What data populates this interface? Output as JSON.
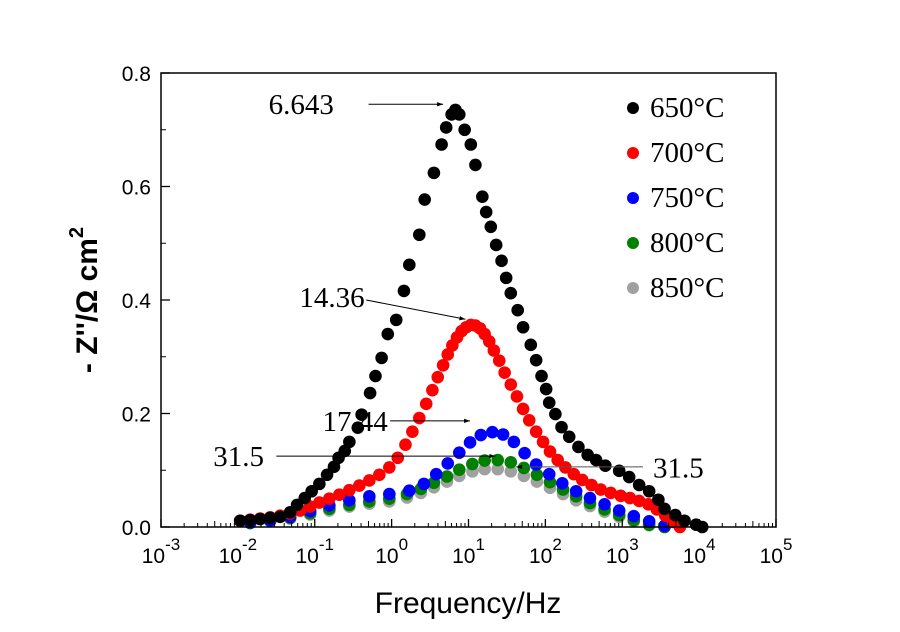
{
  "chart_data": {
    "type": "scatter",
    "title": "",
    "xlabel": "Frequency/Hz",
    "ylabel": "- Z''/Ω cm²",
    "ylabel_parts": {
      "main": "- Z''/Ω cm",
      "sup": "2"
    },
    "xscale": "log",
    "xlim": [
      0.001,
      100000
    ],
    "ylim": [
      0.0,
      0.8
    ],
    "grid": false,
    "legend_position": "top-right",
    "x_ticks": [
      {
        "base": "10",
        "exp": "-3"
      },
      {
        "base": "10",
        "exp": "-2"
      },
      {
        "base": "10",
        "exp": "-1"
      },
      {
        "base": "10",
        "exp": "0"
      },
      {
        "base": "10",
        "exp": "1"
      },
      {
        "base": "10",
        "exp": "2"
      },
      {
        "base": "10",
        "exp": "3"
      },
      {
        "base": "10",
        "exp": "4"
      },
      {
        "base": "10",
        "exp": "5"
      }
    ],
    "y_ticks": [
      "0.0",
      "0.2",
      "0.4",
      "0.6",
      "0.8"
    ],
    "y_tick_values": [
      0.0,
      0.2,
      0.4,
      0.6,
      0.8
    ],
    "series": [
      {
        "name": "650°C",
        "color": "#000000",
        "log_x": [
          -1.97,
          -1.84,
          -1.71,
          -1.58,
          -1.45,
          -1.32,
          -1.23,
          -1.13,
          -1.04,
          -0.94,
          -0.84,
          -0.75,
          -0.69,
          -0.61,
          -0.55,
          -0.44,
          -0.39,
          -0.28,
          -0.21,
          -0.13,
          -0.05,
          0.06,
          0.16,
          0.23,
          0.36,
          0.43,
          0.55,
          0.65,
          0.71,
          0.78,
          0.83,
          0.88,
          0.95,
          1.03,
          1.09,
          1.18,
          1.23,
          1.29,
          1.36,
          1.43,
          1.49,
          1.55,
          1.64,
          1.71,
          1.81,
          1.88,
          1.95,
          2.01,
          2.05,
          2.13,
          2.21,
          2.31,
          2.43,
          2.55,
          2.66,
          2.78,
          2.96,
          3.09,
          3.22,
          3.35,
          3.47,
          3.55,
          3.69,
          3.81,
          3.96,
          4.04
        ],
        "values": [
          0.011,
          0.012,
          0.014,
          0.016,
          0.018,
          0.026,
          0.039,
          0.051,
          0.063,
          0.076,
          0.092,
          0.106,
          0.122,
          0.134,
          0.15,
          0.175,
          0.198,
          0.236,
          0.266,
          0.298,
          0.34,
          0.365,
          0.416,
          0.462,
          0.515,
          0.577,
          0.624,
          0.674,
          0.704,
          0.727,
          0.735,
          0.727,
          0.7,
          0.674,
          0.638,
          0.582,
          0.555,
          0.529,
          0.497,
          0.469,
          0.439,
          0.412,
          0.382,
          0.352,
          0.321,
          0.294,
          0.266,
          0.243,
          0.219,
          0.199,
          0.176,
          0.159,
          0.141,
          0.127,
          0.118,
          0.108,
          0.099,
          0.088,
          0.074,
          0.063,
          0.048,
          0.032,
          0.021,
          0.011,
          0.004,
          0.0
        ]
      },
      {
        "name": "700°C",
        "color": "#ff0000",
        "log_x": [
          -1.97,
          -1.84,
          -1.71,
          -1.58,
          -1.45,
          -1.32,
          -1.19,
          -1.06,
          -0.94,
          -0.81,
          -0.68,
          -0.55,
          -0.42,
          -0.29,
          -0.16,
          -0.03,
          0.08,
          0.18,
          0.27,
          0.36,
          0.45,
          0.53,
          0.6,
          0.67,
          0.73,
          0.79,
          0.85,
          0.91,
          0.97,
          1.03,
          1.09,
          1.15,
          1.21,
          1.27,
          1.33,
          1.4,
          1.47,
          1.55,
          1.63,
          1.71,
          1.79,
          1.88,
          1.97,
          2.06,
          2.16,
          2.26,
          2.37,
          2.48,
          2.6,
          2.72,
          2.85,
          2.98,
          3.1,
          3.22,
          3.34,
          3.45,
          3.56,
          3.66,
          3.75
        ],
        "values": [
          0.011,
          0.013,
          0.015,
          0.017,
          0.02,
          0.024,
          0.029,
          0.036,
          0.043,
          0.05,
          0.057,
          0.065,
          0.073,
          0.082,
          0.092,
          0.105,
          0.122,
          0.145,
          0.168,
          0.192,
          0.217,
          0.241,
          0.264,
          0.285,
          0.304,
          0.32,
          0.334,
          0.345,
          0.352,
          0.356,
          0.355,
          0.35,
          0.34,
          0.327,
          0.311,
          0.293,
          0.272,
          0.251,
          0.23,
          0.208,
          0.188,
          0.168,
          0.15,
          0.133,
          0.118,
          0.105,
          0.093,
          0.083,
          0.074,
          0.066,
          0.06,
          0.055,
          0.051,
          0.046,
          0.04,
          0.031,
          0.02,
          0.009,
          0.0
        ]
      },
      {
        "name": "750°C",
        "color": "#0000ff",
        "log_x": [
          -1.84,
          -1.58,
          -1.32,
          -1.06,
          -0.81,
          -0.55,
          -0.29,
          -0.03,
          0.23,
          0.42,
          0.58,
          0.73,
          0.88,
          1.02,
          1.16,
          1.31,
          1.45,
          1.59,
          1.73,
          1.88,
          2.05,
          2.22,
          2.4,
          2.58,
          2.77,
          2.96,
          3.15,
          3.35,
          3.55
        ],
        "values": [
          0.008,
          0.012,
          0.018,
          0.028,
          0.038,
          0.047,
          0.054,
          0.058,
          0.064,
          0.076,
          0.093,
          0.112,
          0.131,
          0.149,
          0.162,
          0.167,
          0.163,
          0.15,
          0.13,
          0.11,
          0.093,
          0.077,
          0.063,
          0.051,
          0.04,
          0.029,
          0.019,
          0.01,
          0.002
        ]
      },
      {
        "name": "800°C",
        "color": "#008000",
        "log_x": [
          -1.84,
          -1.58,
          -1.32,
          -1.06,
          -0.81,
          -0.55,
          -0.29,
          -0.03,
          0.2,
          0.38,
          0.55,
          0.72,
          0.88,
          1.05,
          1.21,
          1.38,
          1.55,
          1.72,
          1.89,
          2.06,
          2.23,
          2.4,
          2.58,
          2.77,
          2.96,
          3.15,
          3.35,
          3.55
        ],
        "values": [
          0.007,
          0.011,
          0.016,
          0.024,
          0.032,
          0.039,
          0.045,
          0.05,
          0.058,
          0.067,
          0.078,
          0.089,
          0.101,
          0.111,
          0.117,
          0.118,
          0.114,
          0.104,
          0.092,
          0.079,
          0.066,
          0.054,
          0.042,
          0.031,
          0.021,
          0.012,
          0.004,
          0.0
        ]
      },
      {
        "name": "850°C",
        "color": "#a0a0a0",
        "log_x": [
          -1.84,
          -1.58,
          -1.32,
          -1.06,
          -0.81,
          -0.55,
          -0.29,
          -0.03,
          0.2,
          0.38,
          0.55,
          0.72,
          0.88,
          1.05,
          1.21,
          1.38,
          1.55,
          1.72,
          1.89,
          2.06,
          2.23,
          2.4,
          2.58,
          2.77,
          2.96,
          3.15,
          3.35,
          3.55
        ],
        "values": [
          0.007,
          0.01,
          0.015,
          0.022,
          0.029,
          0.036,
          0.041,
          0.045,
          0.052,
          0.06,
          0.07,
          0.08,
          0.09,
          0.098,
          0.102,
          0.102,
          0.098,
          0.09,
          0.08,
          0.069,
          0.058,
          0.047,
          0.037,
          0.027,
          0.018,
          0.01,
          0.003,
          0.0
        ]
      }
    ],
    "annotations": [
      {
        "text": "6.643",
        "target_series": "650°C",
        "arrow": "right",
        "label_log_x": -1.6,
        "label_y": 0.745,
        "arrow_from_log_x": -0.3,
        "arrow_to_log_x": 0.67,
        "arrow_y": 0.745
      },
      {
        "text": "14.36",
        "target_series": "700°C",
        "arrow": "right",
        "label_log_x": -1.2,
        "label_y": 0.405,
        "arrow_from_log_x": -0.33,
        "arrow_to_log_x": 0.96,
        "arrow_y_from": 0.4,
        "arrow_y_to": 0.366
      },
      {
        "text": "17.44",
        "target_series": "750°C",
        "arrow": "right",
        "label_log_x": -0.9,
        "label_y": 0.187,
        "arrow_from_log_x": -0.02,
        "arrow_to_log_x": 1.02,
        "arrow_y": 0.187
      },
      {
        "text": "31.5",
        "target_series": "800°C",
        "arrow": "right",
        "label_log_x": -2.32,
        "label_y": 0.125,
        "arrow_from_log_x": -1.5,
        "arrow_to_log_x": 1.35,
        "arrow_y": 0.125
      },
      {
        "text": "31.5",
        "target_series": "850°C",
        "arrow": "left",
        "label_log_x": 3.4,
        "label_y": 0.105,
        "arrow_from_log_x": 3.27,
        "arrow_to_log_x": 1.62,
        "arrow_y": 0.106
      }
    ]
  }
}
